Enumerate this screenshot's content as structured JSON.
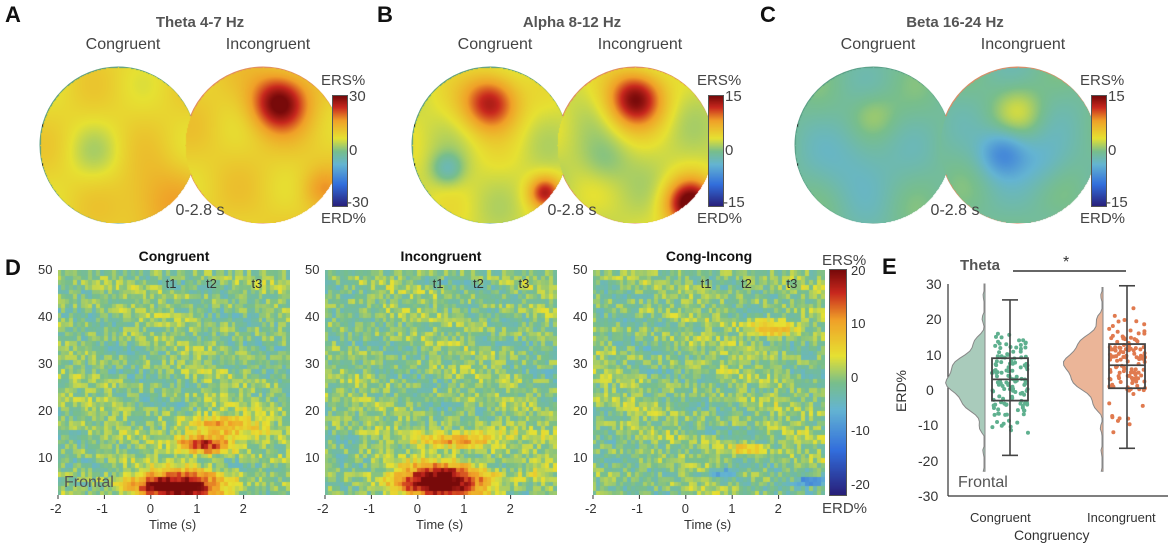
{
  "panels_top": [
    {
      "letter": "A",
      "title": "Theta 4-7 Hz",
      "conditions": [
        "Congruent",
        "Incongruent"
      ],
      "window": "0-2.8 s",
      "colorbar": {
        "top_label": "ERS%",
        "bottom_label": "ERD%",
        "max": "30",
        "mid": "0",
        "min": "-30"
      },
      "ring_colors": [
        "#5a9e86",
        "#e08a63"
      ]
    },
    {
      "letter": "B",
      "title": "Alpha 8-12 Hz",
      "conditions": [
        "Congruent",
        "Incongruent"
      ],
      "window": "0-2.8 s",
      "colorbar": {
        "top_label": "ERS%",
        "bottom_label": "ERD%",
        "max": "15",
        "mid": "0",
        "min": "-15"
      },
      "ring_colors": [
        "#5a9e86",
        "#e08a63"
      ]
    },
    {
      "letter": "C",
      "title": "Beta 16-24 Hz",
      "conditions": [
        "Congruent",
        "Incongruent"
      ],
      "window": "0-2.8 s",
      "colorbar": {
        "top_label": "ERS%",
        "bottom_label": "ERD%",
        "max": "15",
        "mid": "0",
        "min": "-15"
      },
      "ring_colors": [
        "#5a9e86",
        "#e08a63"
      ]
    }
  ],
  "panel_d": {
    "letter": "D",
    "titles": [
      "Congruent",
      "Incongruent",
      "Cong-Incong"
    ],
    "xlabel": "Time (s)",
    "xticks": [
      "-2",
      "-1",
      "0",
      "1",
      "2"
    ],
    "yticks": [
      "10",
      "20",
      "30",
      "40",
      "50"
    ],
    "xlim": [
      -2,
      3
    ],
    "ylim": [
      2,
      50
    ],
    "events": [
      {
        "t": 0,
        "style": "solid"
      },
      {
        "t": 0.85,
        "style": "solid"
      },
      {
        "t": 1.8,
        "style": "dotted"
      }
    ],
    "interval_labels": [
      "t1",
      "t2",
      "t3"
    ],
    "region_label": "Frontal",
    "colorbar": {
      "top_label": "ERS%",
      "bottom_label": "ERD%",
      "ticks": [
        "20",
        "10",
        "0",
        "-10",
        "-20"
      ]
    }
  },
  "chart_data": {
    "type": "box",
    "letter": "E",
    "title": "Theta",
    "xlabel": "Congruency",
    "ylabel": "ERD%",
    "ylim": [
      -30,
      30
    ],
    "yticks": [
      "30",
      "20",
      "10",
      "0",
      "-10",
      "-20",
      "-30"
    ],
    "region_label": "Frontal",
    "significance": "*",
    "categories": [
      "Congruent",
      "Incongruent"
    ],
    "colors": [
      "#5fb08f",
      "#e07a4f"
    ],
    "violin_colors": [
      "#a9cbbb",
      "#ebb598"
    ],
    "boxes": [
      {
        "name": "Congruent",
        "whisker_low": -18.5,
        "q1": -3,
        "median": 3,
        "q3": 9,
        "whisker_high": 25.5
      },
      {
        "name": "Incongruent",
        "whisker_low": -16.5,
        "q1": 0.5,
        "median": 7,
        "q3": 13,
        "whisker_high": 29.5
      }
    ]
  }
}
